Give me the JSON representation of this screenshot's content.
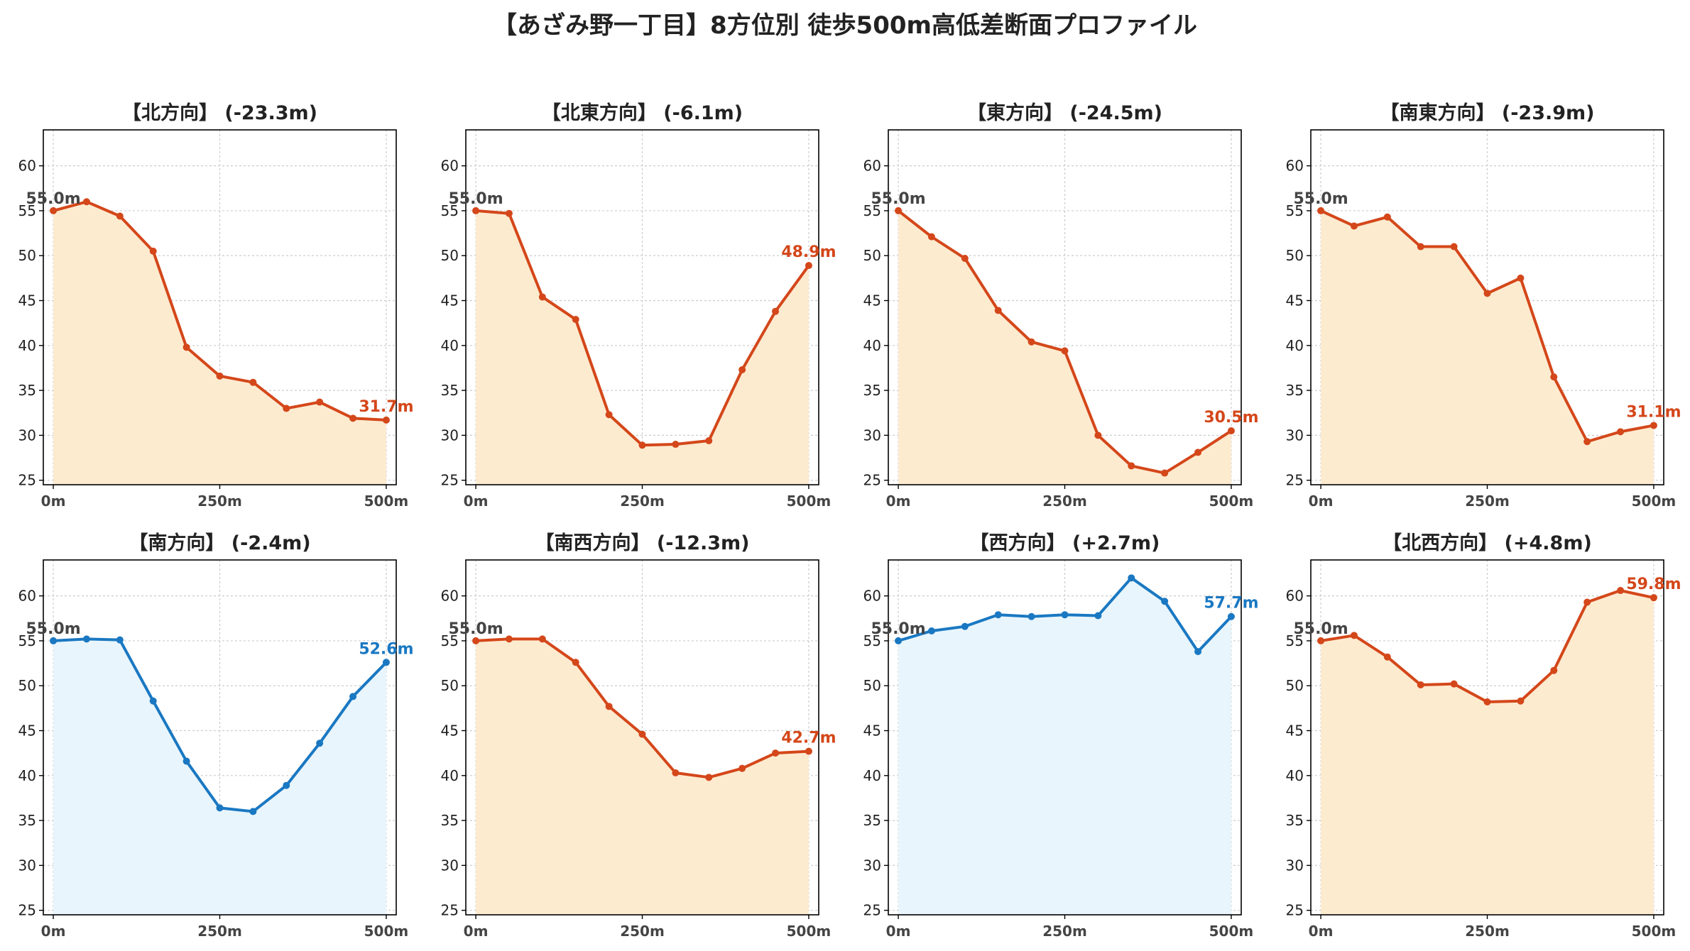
{
  "title": "【あざみ野一丁目】8方位別 徒歩500m高低差断面プロファイル",
  "colors": {
    "down_line": "#d4471a",
    "down_fill": "#fdebd0",
    "up_line": "#1a78c2",
    "up_fill": "#e8f5fc",
    "start_label": "#444444",
    "grid": "#cccccc"
  },
  "chart_data": [
    {
      "type": "area",
      "title": "【北方向】 (-23.3m)",
      "trend": "down",
      "x": [
        0,
        50,
        100,
        150,
        200,
        250,
        300,
        350,
        400,
        450,
        500
      ],
      "values": [
        55.0,
        56.0,
        54.4,
        50.5,
        39.8,
        36.6,
        35.9,
        33.0,
        33.7,
        31.9,
        31.7
      ],
      "start_label": "55.0m",
      "end_label": "31.7m",
      "xticks": [
        "0m",
        "250m",
        "500m"
      ],
      "yticks": [
        25,
        30,
        35,
        40,
        45,
        50,
        55,
        60
      ],
      "xlim": [
        -15,
        515
      ],
      "ylim": [
        24.5,
        64
      ],
      "grid": true
    },
    {
      "type": "area",
      "title": "【北東方向】 (-6.1m)",
      "trend": "down",
      "x": [
        0,
        50,
        100,
        150,
        200,
        250,
        300,
        350,
        400,
        450,
        500
      ],
      "values": [
        55.0,
        54.7,
        45.4,
        42.9,
        32.3,
        28.9,
        29.0,
        29.4,
        37.3,
        43.8,
        48.9
      ],
      "start_label": "55.0m",
      "end_label": "48.9m",
      "xticks": [
        "0m",
        "250m",
        "500m"
      ],
      "yticks": [
        25,
        30,
        35,
        40,
        45,
        50,
        55,
        60
      ],
      "xlim": [
        -15,
        515
      ],
      "ylim": [
        24.5,
        64
      ],
      "grid": true
    },
    {
      "type": "area",
      "title": "【東方向】 (-24.5m)",
      "trend": "down",
      "x": [
        0,
        50,
        100,
        150,
        200,
        250,
        300,
        350,
        400,
        450,
        500
      ],
      "values": [
        55.0,
        52.1,
        49.7,
        43.9,
        40.4,
        39.4,
        30.0,
        26.6,
        25.8,
        28.1,
        30.5
      ],
      "start_label": "55.0m",
      "end_label": "30.5m",
      "xticks": [
        "0m",
        "250m",
        "500m"
      ],
      "yticks": [
        25,
        30,
        35,
        40,
        45,
        50,
        55,
        60
      ],
      "xlim": [
        -15,
        515
      ],
      "ylim": [
        24.5,
        64
      ],
      "grid": true
    },
    {
      "type": "area",
      "title": "【南東方向】 (-23.9m)",
      "trend": "down",
      "x": [
        0,
        50,
        100,
        150,
        200,
        250,
        300,
        350,
        400,
        450,
        500
      ],
      "values": [
        55.0,
        53.3,
        54.3,
        51.0,
        51.0,
        45.8,
        47.5,
        36.5,
        29.3,
        30.4,
        31.1
      ],
      "start_label": "55.0m",
      "end_label": "31.1m",
      "xticks": [
        "0m",
        "250m",
        "500m"
      ],
      "yticks": [
        25,
        30,
        35,
        40,
        45,
        50,
        55,
        60
      ],
      "xlim": [
        -15,
        515
      ],
      "ylim": [
        24.5,
        64
      ],
      "grid": true
    },
    {
      "type": "area",
      "title": "【南方向】 (-2.4m)",
      "trend": "up",
      "x": [
        0,
        50,
        100,
        150,
        200,
        250,
        300,
        350,
        400,
        450,
        500
      ],
      "values": [
        55.0,
        55.2,
        55.1,
        48.3,
        41.6,
        36.4,
        36.0,
        38.9,
        43.6,
        48.8,
        52.6
      ],
      "start_label": "55.0m",
      "end_label": "52.6m",
      "xticks": [
        "0m",
        "250m",
        "500m"
      ],
      "yticks": [
        25,
        30,
        35,
        40,
        45,
        50,
        55,
        60
      ],
      "xlim": [
        -15,
        515
      ],
      "ylim": [
        24.5,
        64
      ],
      "grid": true
    },
    {
      "type": "area",
      "title": "【南西方向】 (-12.3m)",
      "trend": "down",
      "x": [
        0,
        50,
        100,
        150,
        200,
        250,
        300,
        350,
        400,
        450,
        500
      ],
      "values": [
        55.0,
        55.2,
        55.2,
        52.6,
        47.7,
        44.6,
        40.3,
        39.8,
        40.8,
        42.5,
        42.7
      ],
      "start_label": "55.0m",
      "end_label": "42.7m",
      "xticks": [
        "0m",
        "250m",
        "500m"
      ],
      "yticks": [
        25,
        30,
        35,
        40,
        45,
        50,
        55,
        60
      ],
      "xlim": [
        -15,
        515
      ],
      "ylim": [
        24.5,
        64
      ],
      "grid": true
    },
    {
      "type": "area",
      "title": "【西方向】 (+2.7m)",
      "trend": "up",
      "x": [
        0,
        50,
        100,
        150,
        200,
        250,
        300,
        350,
        400,
        450,
        500
      ],
      "values": [
        55.0,
        56.1,
        56.6,
        57.9,
        57.7,
        57.9,
        57.8,
        62.0,
        59.4,
        53.8,
        57.7
      ],
      "start_label": "55.0m",
      "end_label": "57.7m",
      "xticks": [
        "0m",
        "250m",
        "500m"
      ],
      "yticks": [
        25,
        30,
        35,
        40,
        45,
        50,
        55,
        60
      ],
      "xlim": [
        -15,
        515
      ],
      "ylim": [
        24.5,
        64
      ],
      "grid": true
    },
    {
      "type": "area",
      "title": "【北西方向】 (+4.8m)",
      "trend": "down",
      "x": [
        0,
        50,
        100,
        150,
        200,
        250,
        300,
        350,
        400,
        450,
        500
      ],
      "values": [
        55.0,
        55.6,
        53.2,
        50.1,
        50.2,
        48.2,
        48.3,
        51.7,
        59.3,
        60.6,
        59.8
      ],
      "start_label": "55.0m",
      "end_label": "59.8m",
      "xticks": [
        "0m",
        "250m",
        "500m"
      ],
      "yticks": [
        25,
        30,
        35,
        40,
        45,
        50,
        55,
        60
      ],
      "xlim": [
        -15,
        515
      ],
      "ylim": [
        24.5,
        64
      ],
      "grid": true
    }
  ]
}
